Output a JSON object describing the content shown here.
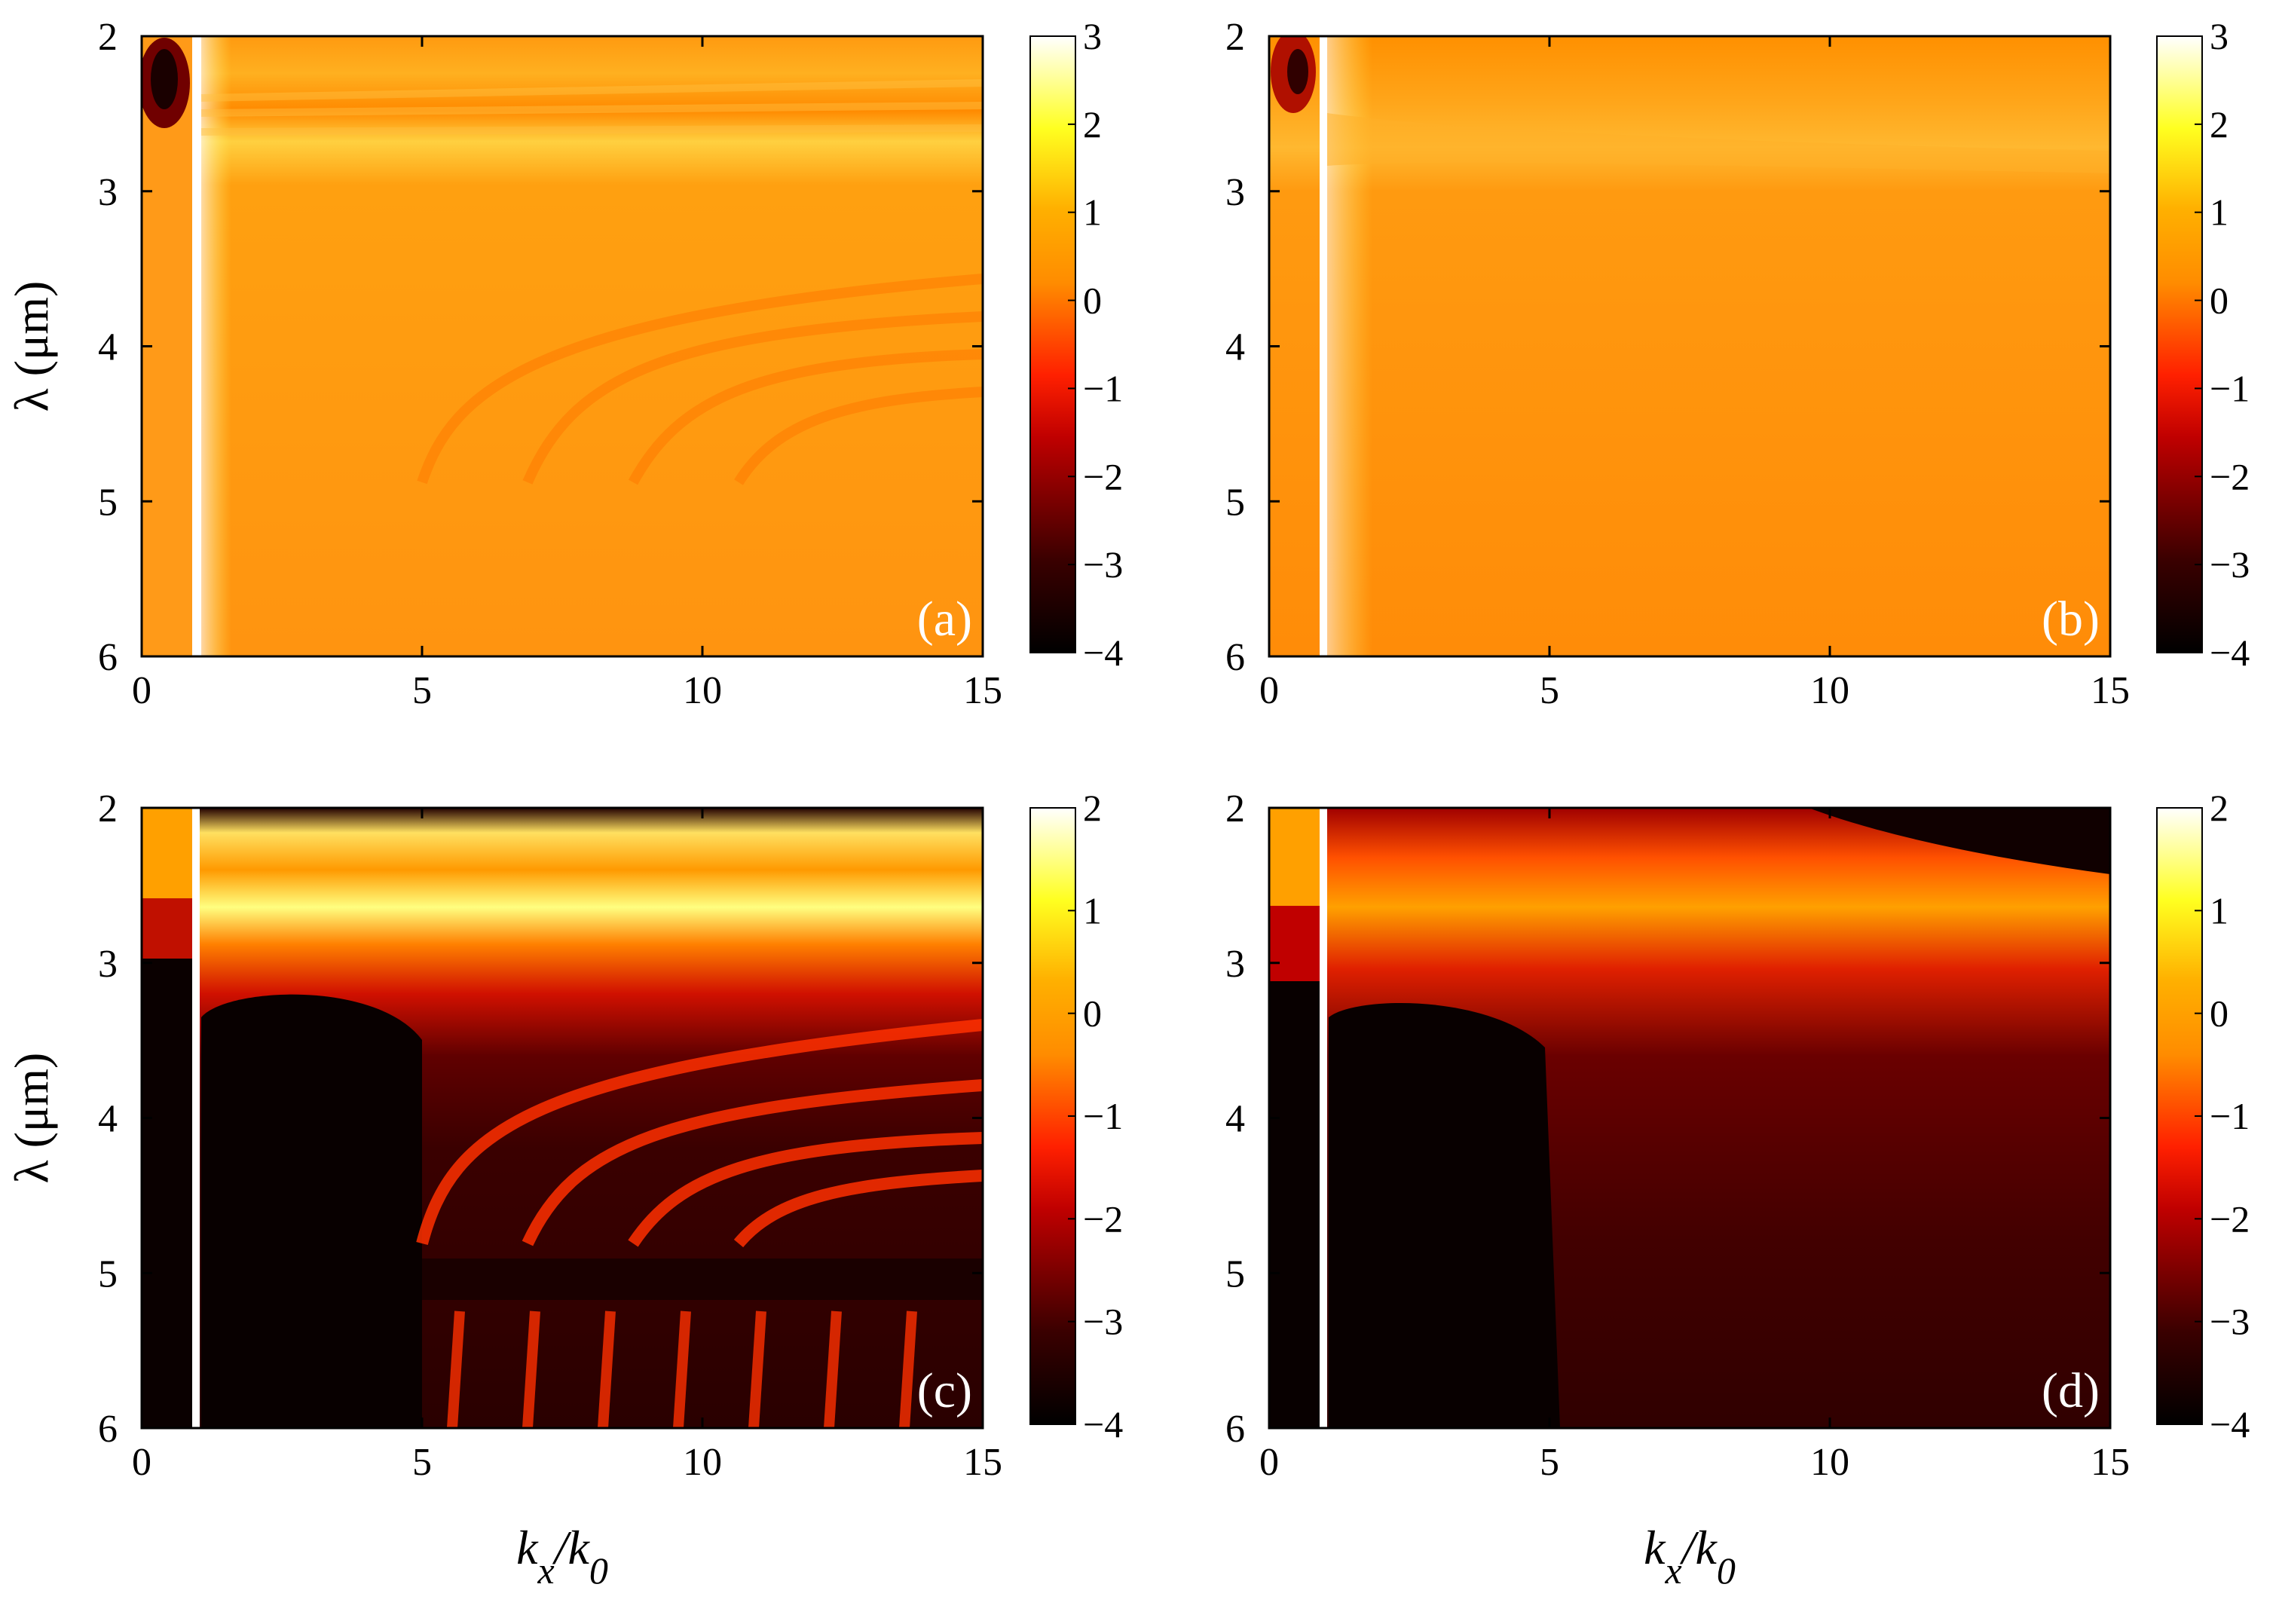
{
  "chart_data": [
    {
      "type": "heatmap",
      "panel_label": "(a)",
      "ylabel": "λ (μm)",
      "xlabel": "",
      "xlim": [
        0,
        15
      ],
      "ylim": [
        2,
        6
      ],
      "x_ticks": [
        "0",
        "5",
        "10",
        "15"
      ],
      "y_ticks": [
        "2",
        "3",
        "4",
        "5",
        "6"
      ],
      "colorbar": {
        "range": [
          -4,
          3
        ],
        "ticks": [
          "3",
          "2",
          "1",
          "0",
          "−1",
          "−2",
          "−3",
          "−4"
        ],
        "colormap": "hot"
      },
      "background_level": 0.2,
      "bright_line_x": 1.0
    },
    {
      "type": "heatmap",
      "panel_label": "(b)",
      "ylabel": "",
      "xlabel": "",
      "xlim": [
        0,
        15
      ],
      "ylim": [
        2,
        6
      ],
      "x_ticks": [
        "0",
        "5",
        "10",
        "15"
      ],
      "y_ticks": [
        "2",
        "3",
        "4",
        "5",
        "6"
      ],
      "colorbar": {
        "range": [
          -4,
          3
        ],
        "ticks": [
          "3",
          "2",
          "1",
          "0",
          "−1",
          "−2",
          "−3",
          "−4"
        ],
        "colormap": "hot"
      },
      "background_level": 0.0,
      "bright_line_x": 1.0
    },
    {
      "type": "heatmap",
      "panel_label": "(c)",
      "ylabel": "λ (μm)",
      "xlabel": "kx/k0",
      "xlim": [
        0,
        15
      ],
      "ylim": [
        2,
        6
      ],
      "x_ticks": [
        "0",
        "5",
        "10",
        "15"
      ],
      "y_ticks": [
        "2",
        "3",
        "4",
        "5",
        "6"
      ],
      "colorbar": {
        "range": [
          -4,
          2
        ],
        "ticks": [
          "2",
          "1",
          "0",
          "−1",
          "−2",
          "−3",
          "−4"
        ],
        "colormap": "hot"
      },
      "background_level": -4,
      "bright_line_x": 1.0
    },
    {
      "type": "heatmap",
      "panel_label": "(d)",
      "ylabel": "",
      "xlabel": "kx/k0",
      "xlim": [
        0,
        15
      ],
      "ylim": [
        2,
        6
      ],
      "x_ticks": [
        "0",
        "5",
        "10",
        "15"
      ],
      "y_ticks": [
        "2",
        "3",
        "4",
        "5",
        "6"
      ],
      "colorbar": {
        "range": [
          -4,
          2
        ],
        "ticks": [
          "2",
          "1",
          "0",
          "−1",
          "−2",
          "−3",
          "−4"
        ],
        "colormap": "hot"
      },
      "background_level": -4,
      "bright_line_x": 1.0
    }
  ],
  "axis_text": {
    "lambda_symbol": "λ",
    "lambda_unit": " (μm)",
    "k_main": "k",
    "k_sub_x": "x",
    "slash": "/",
    "k_sub_0": "0"
  }
}
